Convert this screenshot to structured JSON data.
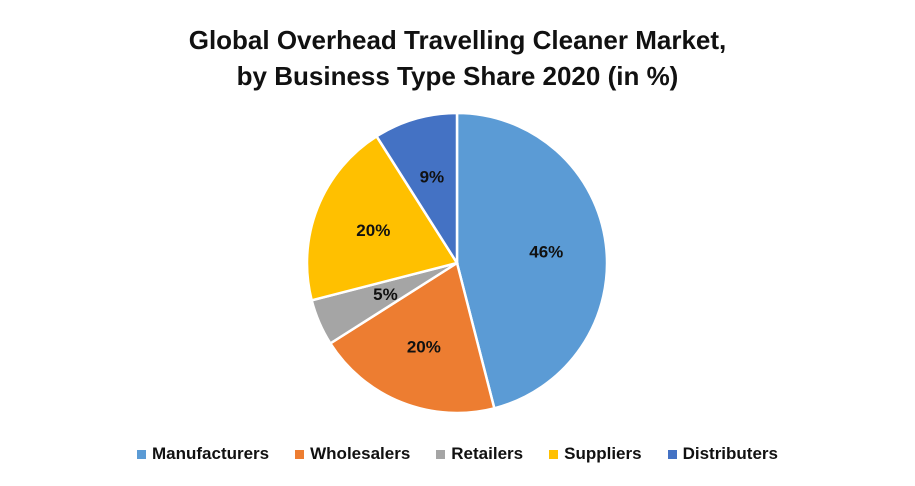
{
  "chart_data": {
    "type": "pie",
    "title": "Global Overhead Travelling Cleaner Market, by Business Type Share 2020 (in %)",
    "title_lines": [
      "Global Overhead Travelling Cleaner Market,",
      "by Business Type Share 2020 (in %)"
    ],
    "categories": [
      "Manufacturers",
      "Wholesalers",
      "Retailers",
      "Suppliers",
      "Distributers"
    ],
    "values": [
      46,
      20,
      5,
      20,
      9
    ],
    "labels": [
      "46%",
      "20%",
      "5%",
      "20%",
      "9%"
    ],
    "colors": [
      "#5B9BD5",
      "#ED7D31",
      "#A5A5A5",
      "#FFC000",
      "#4472C4"
    ],
    "legend_position": "bottom"
  }
}
